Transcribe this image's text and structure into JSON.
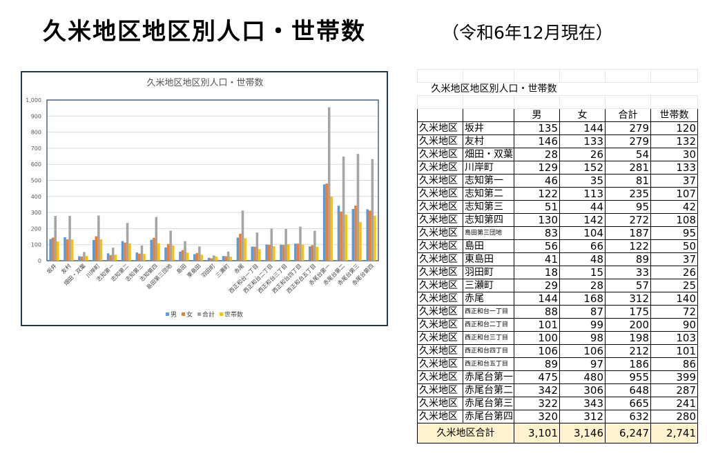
{
  "header": {
    "title": "久米地区地区別人口・世帯数",
    "subtitle": "（令和6年12月現在）"
  },
  "chart_data": {
    "type": "bar",
    "title": "久米地区地区別人口・世帯数",
    "categories": [
      "坂井",
      "友村",
      "畑田・双葉",
      "川岸町",
      "志知第一",
      "志知第二",
      "志知第三",
      "志知第四",
      "島田第三団地",
      "島田",
      "東島田",
      "羽田町",
      "三瀬町",
      "赤尾",
      "西正和台一丁目",
      "西正和台二丁目",
      "西正和台三丁目",
      "西正和台四丁目",
      "西正和台五丁目",
      "赤尾台第一",
      "赤尾台第二",
      "赤尾台第三",
      "赤尾台第四"
    ],
    "series": [
      {
        "name": "男",
        "color": "#5b9bd5",
        "values": [
          135,
          146,
          28,
          129,
          46,
          122,
          51,
          130,
          83,
          56,
          41,
          18,
          29,
          144,
          88,
          101,
          100,
          106,
          89,
          475,
          342,
          322,
          320
        ]
      },
      {
        "name": "女",
        "color": "#ed7d31",
        "values": [
          144,
          133,
          26,
          152,
          35,
          113,
          44,
          142,
          104,
          66,
          48,
          15,
          28,
          168,
          87,
          99,
          98,
          106,
          97,
          480,
          306,
          343,
          312
        ]
      },
      {
        "name": "合計",
        "color": "#a5a5a5",
        "values": [
          279,
          279,
          54,
          281,
          81,
          235,
          95,
          272,
          187,
          122,
          89,
          33,
          57,
          312,
          175,
          200,
          198,
          212,
          186,
          955,
          648,
          665,
          632
        ]
      },
      {
        "name": "世帯数",
        "color": "#ffc000",
        "values": [
          120,
          132,
          30,
          133,
          37,
          107,
          42,
          108,
          95,
          50,
          37,
          26,
          25,
          140,
          72,
          90,
          103,
          101,
          86,
          399,
          287,
          241,
          280
        ]
      }
    ],
    "ylim": [
      0,
      1000
    ],
    "yticks": [
      0,
      100,
      200,
      300,
      400,
      500,
      600,
      700,
      800,
      900,
      {
        "value": 1000,
        "label": "1,000"
      }
    ],
    "grid": true,
    "legend": "bottom"
  },
  "table": {
    "title": "久米地区地区別人口・世帯数",
    "area": "久米地区",
    "total": {
      "label": "久米地区合計",
      "values": [
        "3,101",
        "3,146",
        "6,247",
        "2,741"
      ]
    }
  }
}
